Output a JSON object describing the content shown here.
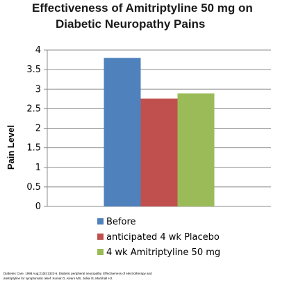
{
  "chart_data": {
    "type": "bar",
    "title_lines": [
      "Effectiveness of Amitriptyline 50 mg on",
      "Diabetic Neuropathy Pains"
    ],
    "xlabel": "",
    "ylabel": "Pain Level",
    "ylim": [
      0,
      4
    ],
    "yticks": [
      "0",
      "0.5",
      "1",
      "1.5",
      "2",
      "2.5",
      "3",
      "3.5",
      "4"
    ],
    "grid": true,
    "legend_position": "bottom",
    "series": [
      {
        "name": "Before",
        "values": [
          3.8
        ],
        "color": "#4F81BD"
      },
      {
        "name": "anticipated 4 wk Placebo",
        "values": [
          2.76
        ],
        "color": "#C0504D"
      },
      {
        "name": "4 wk Amitriptyline 50 mg",
        "values": [
          2.89
        ],
        "color": "#9BBB59"
      }
    ]
  },
  "citation_lines": [
    "Diabetes Care. 1998 Aug;21(8):1322-5. Diabetic peripheral neuropathy. Effectiveness of electrotherapy and",
    "amitriptyline for symptomatic relief. Kumar D, Alvaro MS, Julka IS, Marshall HJ."
  ]
}
